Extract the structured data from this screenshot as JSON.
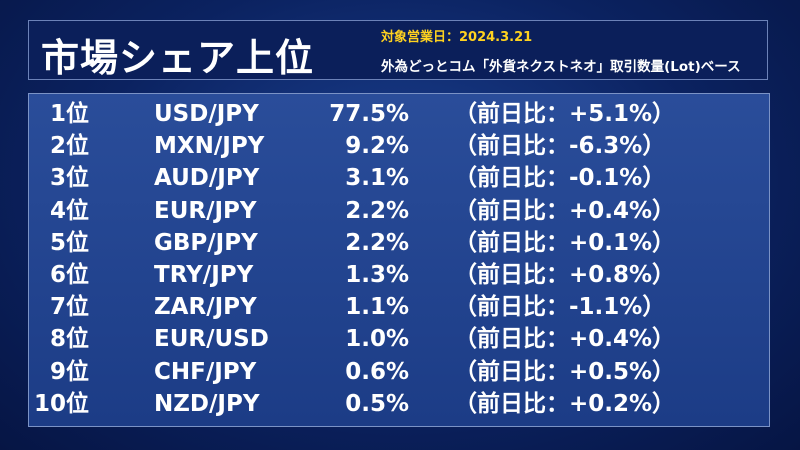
{
  "header": {
    "title": "市場シェア上位",
    "date": "対象営業日：2024.3.21",
    "basis": "外為どっとコム「外貨ネクストネオ」取引数量(Lot)ベース"
  },
  "table": {
    "rows": [
      [
        "1位",
        "USD/JPY",
        "77.5%",
        "（前日比：+5.1%）"
      ],
      [
        "2位",
        "MXN/JPY",
        "9.2%",
        "（前日比：-6.3%）"
      ],
      [
        "3位",
        "AUD/JPY",
        "3.1%",
        "（前日比：-0.1%）"
      ],
      [
        "4位",
        "EUR/JPY",
        "2.2%",
        "（前日比：+0.4%）"
      ],
      [
        "5位",
        "GBP/JPY",
        "2.2%",
        "（前日比：+0.1%）"
      ],
      [
        "6位",
        "TRY/JPY",
        "1.3%",
        "（前日比：+0.8%）"
      ],
      [
        "7位",
        "ZAR/JPY",
        "1.1%",
        "（前日比：-1.1%）"
      ],
      [
        "8位",
        "EUR/USD",
        "1.0%",
        "（前日比：+0.4%）"
      ],
      [
        "9位",
        "CHF/JPY",
        "0.6%",
        "（前日比：+0.5%）"
      ],
      [
        "10位",
        "NZD/JPY",
        "0.5%",
        "（前日比：+0.2%）"
      ]
    ]
  }
}
